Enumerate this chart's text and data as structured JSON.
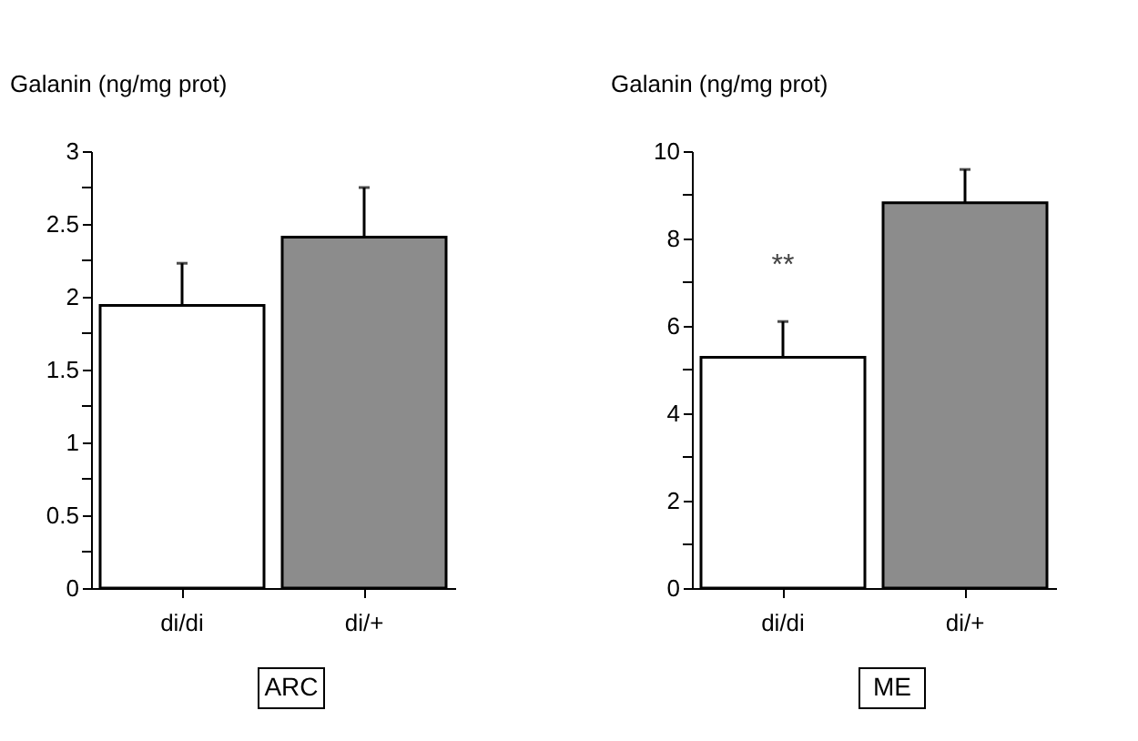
{
  "chart_data": [
    {
      "type": "bar",
      "ylabel": "Galanin (ng/mg prot)",
      "categories": [
        "di/di",
        "di/+"
      ],
      "values": [
        1.94,
        2.41
      ],
      "colors": [
        "#ffffff",
        "#8c8c8c"
      ],
      "errors": [
        [
          1.94,
          2.23
        ],
        [
          2.41,
          2.75
        ]
      ],
      "ylim": [
        0,
        3
      ],
      "yticks": [
        0,
        {
          "value": 0.25,
          "label": null
        },
        0.5,
        {
          "value": 0.75,
          "label": null
        },
        1,
        {
          "value": 1.25,
          "label": null
        },
        1.5,
        {
          "value": 1.75,
          "label": null
        },
        2,
        {
          "value": 2.25,
          "label": null
        },
        2.5,
        {
          "value": 2.75,
          "label": null
        },
        3
      ],
      "grid": false,
      "annotations": [
        "ARC"
      ]
    },
    {
      "type": "bar",
      "ylabel": "Galanin (ng/mg prot)",
      "categories": [
        "di/di",
        "di/+"
      ],
      "values": [
        5.28,
        8.82
      ],
      "colors": [
        "#ffffff",
        "#8c8c8c"
      ],
      "errors": [
        [
          5.28,
          6.1
        ],
        [
          8.82,
          9.58
        ]
      ],
      "ylim": [
        0,
        10
      ],
      "yticks": [
        0,
        {
          "value": 1,
          "label": null
        },
        2,
        {
          "value": 3,
          "label": null
        },
        4,
        {
          "value": 5,
          "label": null
        },
        6,
        {
          "value": 7,
          "label": null
        },
        8,
        {
          "value": 9,
          "label": null
        },
        10
      ],
      "grid": false,
      "annotations": [
        "**",
        "ME"
      ]
    }
  ]
}
